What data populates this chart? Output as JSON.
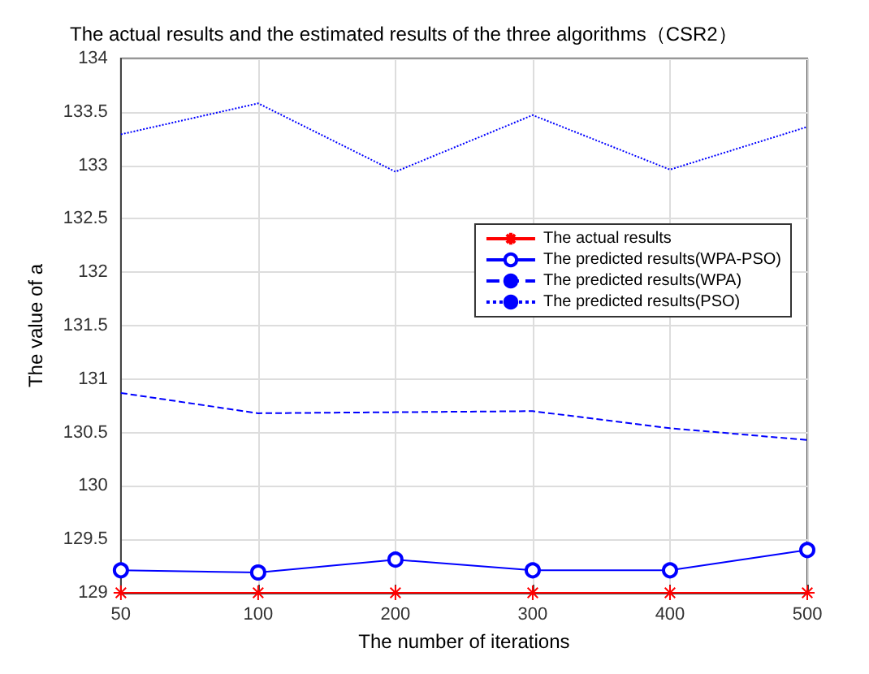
{
  "chart_data": {
    "type": "line",
    "title": "The actual results and the estimated results of the three algorithms（CSR2）",
    "xlabel": "The number of iterations",
    "ylabel": "The value of a",
    "categories": [
      "50",
      "100",
      "200",
      "300",
      "400",
      "500"
    ],
    "series": [
      {
        "name": "The actual results",
        "color": "#ff0000",
        "marker": "cross",
        "line_style": "solid",
        "values": [
          129,
          129,
          129,
          129,
          129,
          129
        ]
      },
      {
        "name": "The predicted results(WPA-PSO)",
        "color": "#0000ff",
        "marker": "circle",
        "line_style": "solid",
        "values": [
          129.21,
          129.19,
          129.31,
          129.21,
          129.21,
          129.4
        ]
      },
      {
        "name": "The predicted results(WPA)",
        "color": "#0000ff",
        "marker": "none",
        "line_style": "dashed",
        "values": [
          130.87,
          130.68,
          130.69,
          130.7,
          130.54,
          130.43
        ]
      },
      {
        "name": "The predicted results(PSO)",
        "color": "#0000ff",
        "marker": "none",
        "line_style": "dotted",
        "values": [
          133.29,
          133.58,
          132.94,
          133.47,
          132.96,
          133.36
        ]
      }
    ],
    "ylim": [
      129,
      134
    ],
    "yticks": [
      129,
      129.5,
      130,
      130.5,
      131,
      131.5,
      132,
      132.5,
      133,
      133.5,
      134
    ],
    "grid": true,
    "legend": "right"
  }
}
